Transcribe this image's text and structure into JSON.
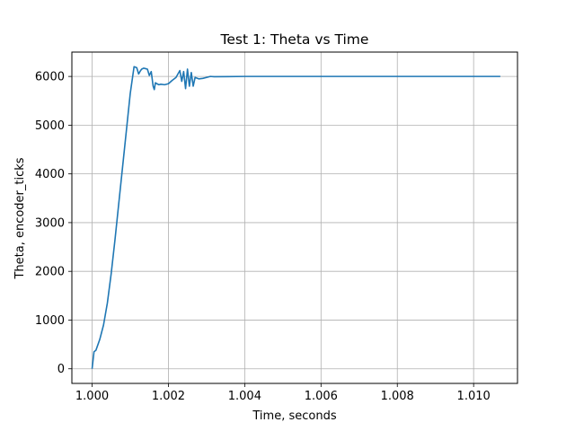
{
  "chart_data": {
    "type": "line",
    "title": "Test 1: Theta vs Time",
    "xlabel": "Time, seconds",
    "ylabel": "Theta, encoder_ticks",
    "xlim": [
      0.99947,
      1.01115
    ],
    "ylim": [
      -300,
      6500
    ],
    "grid": true,
    "xticks": [
      1.0,
      1.002,
      1.004,
      1.006,
      1.008,
      1.01
    ],
    "xtick_labels": [
      "1.000",
      "1.002",
      "1.004",
      "1.006",
      "1.008",
      "1.010"
    ],
    "yticks": [
      0,
      1000,
      2000,
      3000,
      4000,
      5000,
      6000
    ],
    "ytick_labels": [
      "0",
      "1000",
      "2000",
      "3000",
      "4000",
      "5000",
      "6000"
    ],
    "line_color": "#1f77b4",
    "series": [
      {
        "x": [
          1.0,
          1.00005,
          1.0001,
          1.0002,
          1.0003,
          1.0004,
          1.0005,
          1.0006,
          1.0007,
          1.0008,
          1.0009,
          1.001,
          1.0011,
          1.00117,
          1.00122,
          1.00127,
          1.0013,
          1.00135,
          1.0014,
          1.00145,
          1.0015,
          1.00155,
          1.0016,
          1.00163,
          1.00166,
          1.0017,
          1.00175,
          1.0018,
          1.0019,
          1.002,
          1.0021,
          1.0022,
          1.00225,
          1.0023,
          1.00235,
          1.0024,
          1.00245,
          1.0025,
          1.00255,
          1.0026,
          1.00265,
          1.0027,
          1.0028,
          1.0029,
          1.003,
          1.0031,
          1.0032,
          1.004,
          1.005,
          1.006,
          1.007,
          1.008,
          1.009,
          1.01,
          1.0107
        ],
        "y": [
          0,
          350,
          380,
          600,
          900,
          1350,
          1950,
          2650,
          3400,
          4150,
          4900,
          5650,
          6200,
          6180,
          6050,
          6120,
          6150,
          6170,
          6160,
          6150,
          6020,
          6100,
          5800,
          5730,
          5870,
          5850,
          5830,
          5840,
          5830,
          5850,
          5920,
          5980,
          6050,
          6120,
          5900,
          6100,
          5750,
          6150,
          5800,
          6080,
          5800,
          5980,
          5950,
          5960,
          5980,
          6000,
          5995,
          6000,
          6000,
          6000,
          6000,
          6000,
          6000,
          6000,
          6000
        ]
      }
    ]
  }
}
